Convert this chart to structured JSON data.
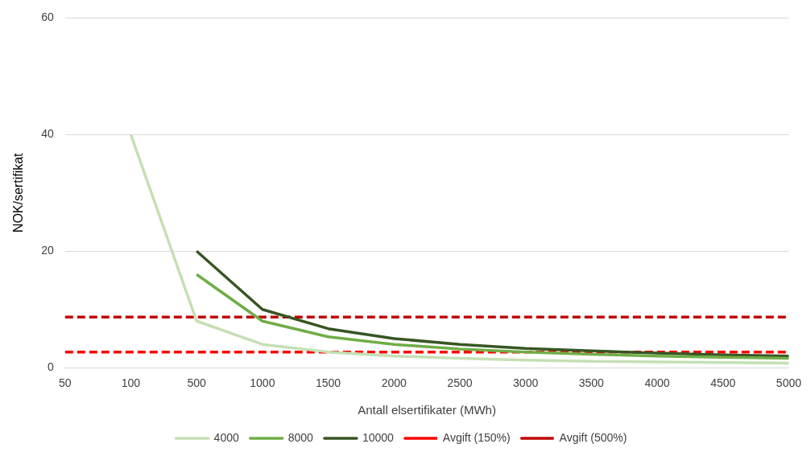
{
  "chart_data": {
    "type": "line",
    "xlabel": "Antall elsertifikater (MWh)",
    "ylabel": "NOK/sertifikat",
    "categories": [
      "50",
      "100",
      "500",
      "1000",
      "1500",
      "2000",
      "2500",
      "3000",
      "3500",
      "4000",
      "4500",
      "5000"
    ],
    "series": [
      {
        "name": "4000",
        "color": "#c5e0b4",
        "line_style": "solid",
        "values": [
          null,
          40,
          8,
          4,
          2.7,
          2,
          1.6,
          1.3,
          1.1,
          1,
          0.9,
          0.8
        ]
      },
      {
        "name": "8000",
        "color": "#70ad47",
        "line_style": "solid",
        "values": [
          null,
          null,
          16,
          8,
          5.3,
          4,
          3.2,
          2.7,
          2.3,
          2,
          1.8,
          1.6
        ]
      },
      {
        "name": "10000",
        "color": "#375623",
        "line_style": "solid",
        "values": [
          null,
          null,
          20,
          10,
          6.7,
          5,
          4,
          3.3,
          2.9,
          2.5,
          2.2,
          2
        ]
      },
      {
        "name": "Avgift (150%)",
        "color": "#ff0000",
        "line_style": "dashed",
        "values": [
          2.7,
          2.7,
          2.7,
          2.7,
          2.7,
          2.7,
          2.7,
          2.7,
          2.7,
          2.7,
          2.7,
          2.7
        ]
      },
      {
        "name": "Avgift (500%)",
        "color": "#c00000",
        "line_style": "dashed",
        "values": [
          8.7,
          8.7,
          8.7,
          8.7,
          8.7,
          8.7,
          8.7,
          8.7,
          8.7,
          8.7,
          8.7,
          8.7
        ]
      }
    ],
    "ylim": [
      0,
      60
    ],
    "yticks": [
      0,
      20,
      40,
      60
    ],
    "grid": "y",
    "legend": "bottom",
    "marker": "none"
  }
}
